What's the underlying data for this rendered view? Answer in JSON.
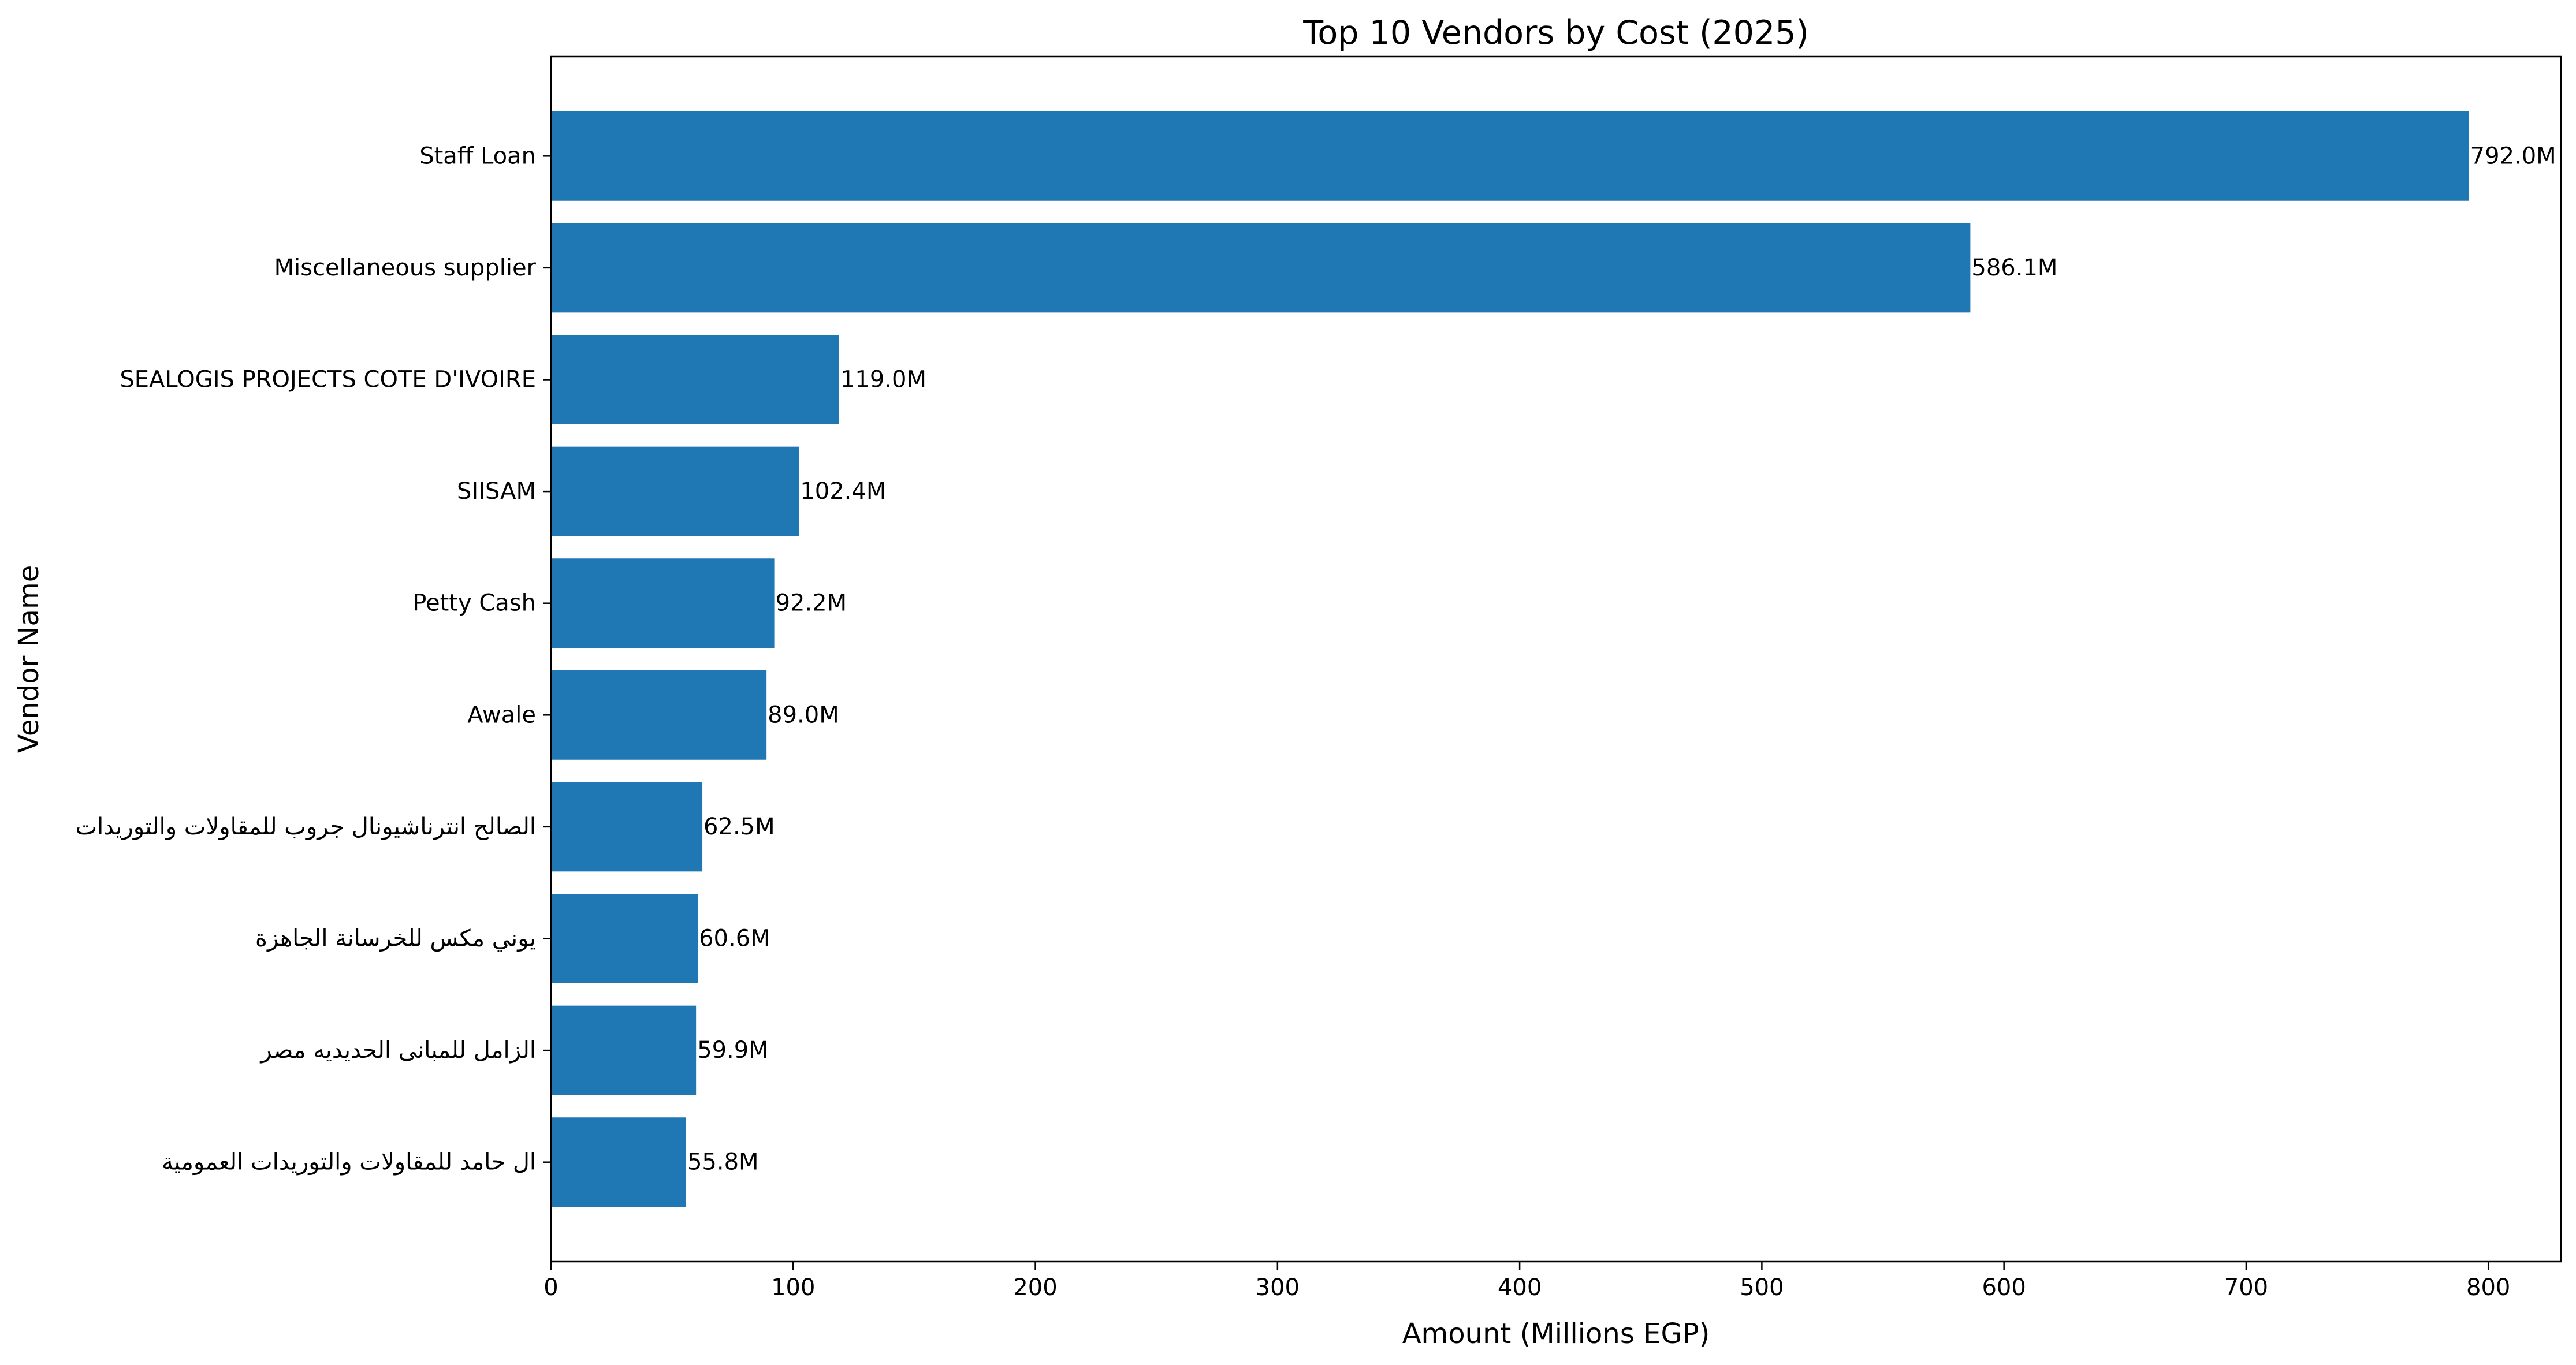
{
  "chart_data": {
    "type": "bar",
    "orientation": "horizontal",
    "title": "Top 10 Vendors by Cost (2025)",
    "xlabel": "Amount (Millions EGP)",
    "ylabel": "Vendor Name",
    "xlim": [
      0,
      830
    ],
    "xticks": [
      0,
      100,
      200,
      300,
      400,
      500,
      600,
      700,
      800
    ],
    "grid": false,
    "legend": "none",
    "bar_color": "#1f77b4",
    "categories": [
      "Staff Loan",
      "Miscellaneous supplier",
      "SEALOGIS PROJECTS COTE D'IVOIRE",
      "SIISAM",
      "Petty Cash",
      "Awale",
      "الصالح انترناشيونال جروب للمقاولات والتوريدات",
      "يوني مكس للخرسانة الجاهزة",
      "الزامل للمبانى الحديديه مصر",
      "ال حامد للمقاولات والتوريدات العمومية"
    ],
    "values": [
      792.0,
      586.1,
      119.0,
      102.4,
      92.2,
      89.0,
      62.5,
      60.6,
      59.9,
      55.8
    ],
    "value_labels": [
      "792.0M",
      "586.1M",
      "119.0M",
      "102.4M",
      "92.2M",
      "89.0M",
      "62.5M",
      "60.6M",
      "59.9M",
      "55.8M"
    ]
  }
}
